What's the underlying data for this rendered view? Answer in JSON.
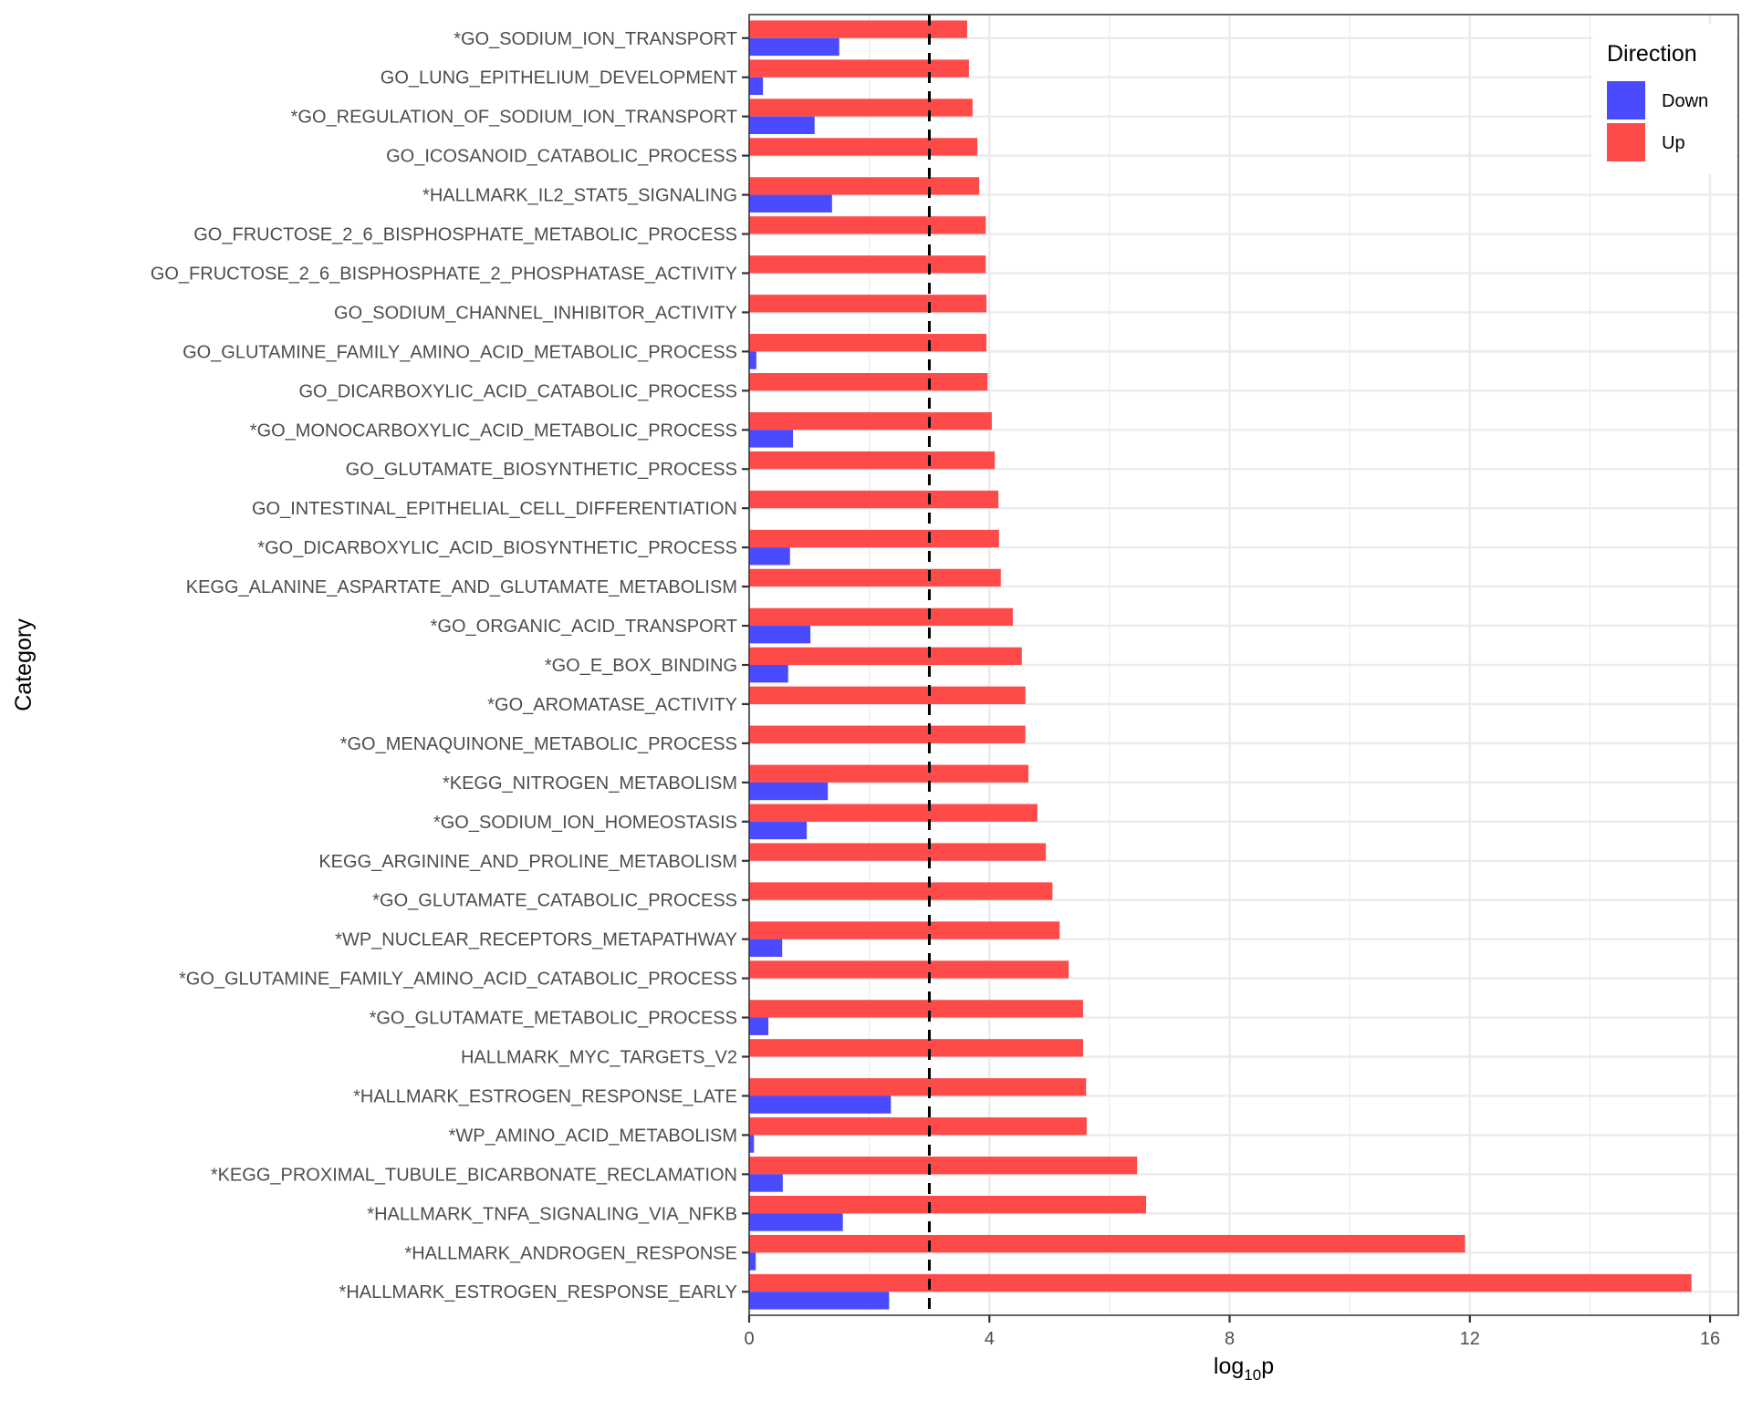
{
  "chart_data": {
    "type": "bar",
    "orientation": "horizontal",
    "title": "",
    "xlabel": "log10p",
    "xlabel_parts": {
      "base": "log",
      "subscript": "10",
      "suffix": "p"
    },
    "ylabel": "Category",
    "xlim": [
      0,
      16.47
    ],
    "xticks": [
      0,
      4,
      8,
      12,
      16
    ],
    "xtick_labels": [
      "0",
      "4",
      "8",
      "12",
      "16"
    ],
    "minor_xticks": [
      2,
      6,
      10,
      14
    ],
    "grid": true,
    "threshold_line": {
      "value": 3,
      "style": "dashed",
      "color": "#000000"
    },
    "legend": {
      "title": "Direction",
      "position": "top-right",
      "entries": [
        {
          "label": "Down",
          "color": "#4a4aff"
        },
        {
          "label": "Up",
          "color": "#ff4a4a"
        }
      ]
    },
    "categories": [
      "*GO_SODIUM_ION_TRANSPORT",
      "GO_LUNG_EPITHELIUM_DEVELOPMENT",
      "*GO_REGULATION_OF_SODIUM_ION_TRANSPORT",
      "GO_ICOSANOID_CATABOLIC_PROCESS",
      "*HALLMARK_IL2_STAT5_SIGNALING",
      "GO_FRUCTOSE_2_6_BISPHOSPHATE_METABOLIC_PROCESS",
      "GO_FRUCTOSE_2_6_BISPHOSPHATE_2_PHOSPHATASE_ACTIVITY",
      "GO_SODIUM_CHANNEL_INHIBITOR_ACTIVITY",
      "GO_GLUTAMINE_FAMILY_AMINO_ACID_METABOLIC_PROCESS",
      "GO_DICARBOXYLIC_ACID_CATABOLIC_PROCESS",
      "*GO_MONOCARBOXYLIC_ACID_METABOLIC_PROCESS",
      "GO_GLUTAMATE_BIOSYNTHETIC_PROCESS",
      "GO_INTESTINAL_EPITHELIAL_CELL_DIFFERENTIATION",
      "*GO_DICARBOXYLIC_ACID_BIOSYNTHETIC_PROCESS",
      "KEGG_ALANINE_ASPARTATE_AND_GLUTAMATE_METABOLISM",
      "*GO_ORGANIC_ACID_TRANSPORT",
      "*GO_E_BOX_BINDING",
      "*GO_AROMATASE_ACTIVITY",
      "*GO_MENAQUINONE_METABOLIC_PROCESS",
      "*KEGG_NITROGEN_METABOLISM",
      "*GO_SODIUM_ION_HOMEOSTASIS",
      "KEGG_ARGININE_AND_PROLINE_METABOLISM",
      "*GO_GLUTAMATE_CATABOLIC_PROCESS",
      "*WP_NUCLEAR_RECEPTORS_METAPATHWAY",
      "*GO_GLUTAMINE_FAMILY_AMINO_ACID_CATABOLIC_PROCESS",
      "*GO_GLUTAMATE_METABOLIC_PROCESS",
      "HALLMARK_MYC_TARGETS_V2",
      "*HALLMARK_ESTROGEN_RESPONSE_LATE",
      "*WP_AMINO_ACID_METABOLISM",
      "*KEGG_PROXIMAL_TUBULE_BICARBONATE_RECLAMATION",
      "*HALLMARK_TNFA_SIGNALING_VIA_NFKB",
      "*HALLMARK_ANDROGEN_RESPONSE",
      "*HALLMARK_ESTROGEN_RESPONSE_EARLY"
    ],
    "series": [
      {
        "name": "Up",
        "color": "#ff4a4a",
        "values": [
          3.63,
          3.66,
          3.72,
          3.8,
          3.83,
          3.94,
          3.94,
          3.95,
          3.95,
          3.97,
          4.04,
          4.09,
          4.15,
          4.16,
          4.19,
          4.39,
          4.54,
          4.6,
          4.6,
          4.65,
          4.8,
          4.94,
          5.05,
          5.17,
          5.32,
          5.56,
          5.56,
          5.61,
          5.62,
          6.46,
          6.61,
          11.92,
          15.69
        ]
      },
      {
        "name": "Down",
        "color": "#4a4aff",
        "values": [
          1.5,
          0.23,
          1.09,
          0,
          1.38,
          0,
          0,
          0,
          0.12,
          0,
          0.73,
          0,
          0,
          0.68,
          0,
          1.02,
          0.65,
          0,
          0,
          1.31,
          0.96,
          0,
          0,
          0.55,
          0,
          0.32,
          0,
          2.36,
          0.08,
          0.56,
          1.56,
          0.11,
          2.33
        ]
      }
    ]
  },
  "colors": {
    "grid": "#ebebeb",
    "panel_border": "#333333",
    "tick_text": "#4d4d4d"
  }
}
